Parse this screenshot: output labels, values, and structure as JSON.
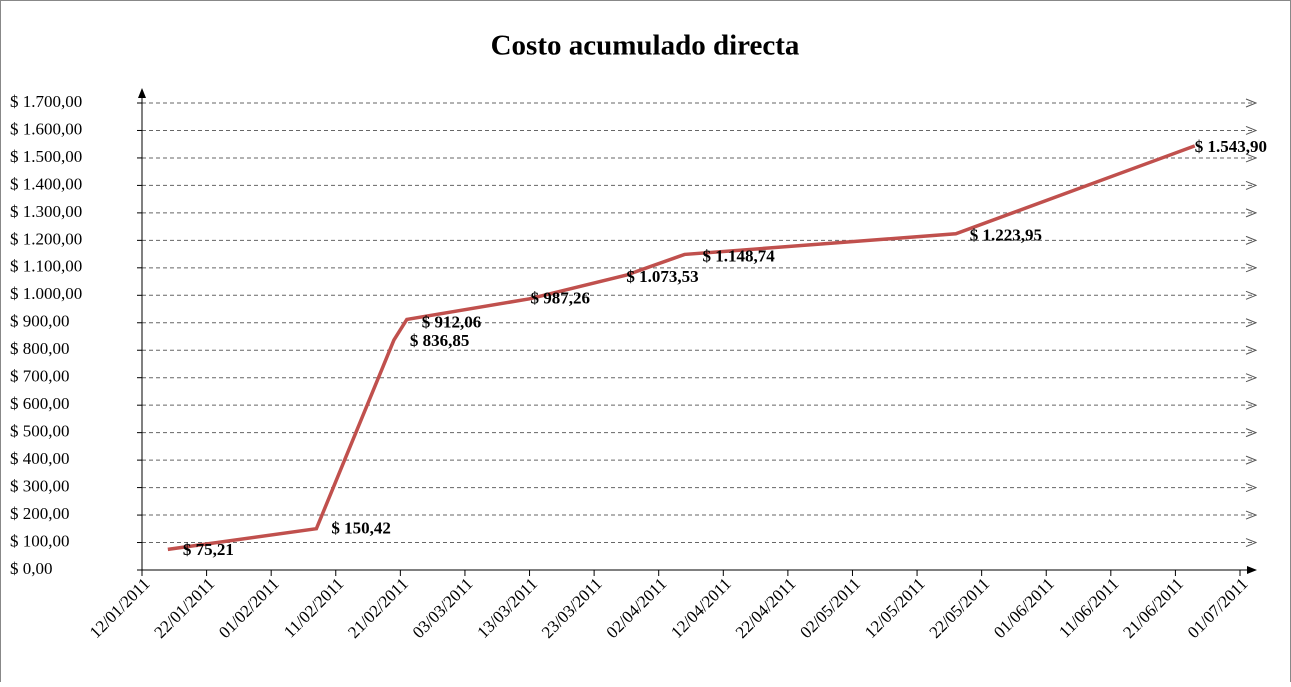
{
  "chart_data": {
    "type": "line",
    "title": "Costo acumulado directa",
    "x": [
      "16/01/2011",
      "08/02/2011",
      "20/02/2011",
      "22/02/2011",
      "13/03/2011",
      "28/03/2011",
      "06/04/2011",
      "18/05/2011",
      "24/06/2011"
    ],
    "series": [
      {
        "name": "Costo acumulado directa",
        "color": "#c0504d",
        "values": [
          75.21,
          150.42,
          836.85,
          912.06,
          987.26,
          1073.53,
          1148.74,
          1223.95,
          1543.9
        ],
        "value_labels": [
          "$ 75,21",
          "$ 150,42",
          "$ 836,85",
          "$ 912,06",
          "$ 987,26",
          "$ 1.073,53",
          "$ 1.148,74",
          "$ 1.223,95",
          "$ 1.543,90"
        ]
      }
    ],
    "xlim": [
      "12/01/2011",
      "01/07/2011"
    ],
    "xticks": [
      "12/01/2011",
      "22/01/2011",
      "01/02/2011",
      "11/02/2011",
      "21/02/2011",
      "03/03/2011",
      "13/03/2011",
      "23/03/2011",
      "02/04/2011",
      "12/04/2011",
      "22/04/2011",
      "02/05/2011",
      "12/05/2011",
      "22/05/2011",
      "01/06/2011",
      "11/06/2011",
      "21/06/2011",
      "01/07/2011"
    ],
    "ylim": [
      0,
      1700
    ],
    "yticks": [
      {
        "value": 0,
        "label": "$ 0,00"
      },
      {
        "value": 100,
        "label": "$ 100,00"
      },
      {
        "value": 200,
        "label": "$ 200,00"
      },
      {
        "value": 300,
        "label": "$ 300,00"
      },
      {
        "value": 400,
        "label": "$ 400,00"
      },
      {
        "value": 500,
        "label": "$ 500,00"
      },
      {
        "value": 600,
        "label": "$ 600,00"
      },
      {
        "value": 700,
        "label": "$ 700,00"
      },
      {
        "value": 800,
        "label": "$ 800,00"
      },
      {
        "value": 900,
        "label": "$ 900,00"
      },
      {
        "value": 1000,
        "label": "$ 1.000,00"
      },
      {
        "value": 1100,
        "label": "$ 1.100,00"
      },
      {
        "value": 1200,
        "label": "$ 1.200,00"
      },
      {
        "value": 1300,
        "label": "$ 1.300,00"
      },
      {
        "value": 1400,
        "label": "$ 1.400,00"
      },
      {
        "value": 1500,
        "label": "$ 1.500,00"
      },
      {
        "value": 1600,
        "label": "$ 1.600,00"
      },
      {
        "value": 1700,
        "label": "$ 1.700,00"
      }
    ],
    "grid": true
  }
}
